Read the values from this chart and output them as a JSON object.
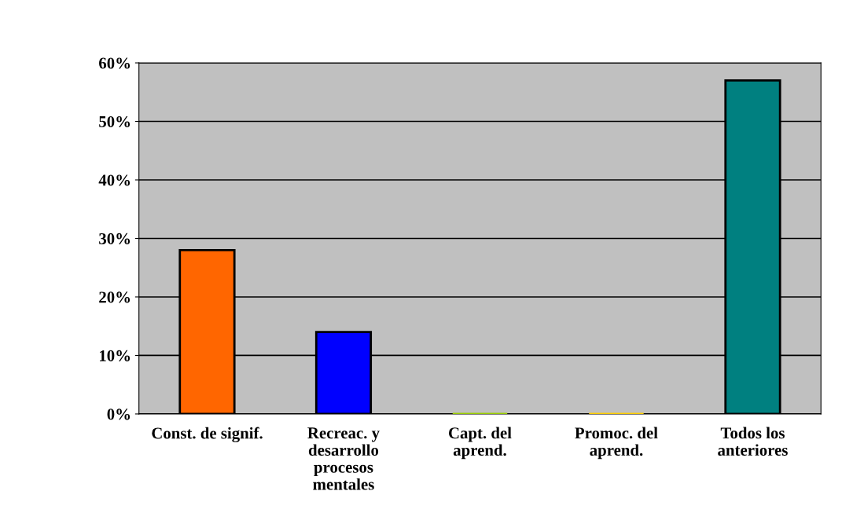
{
  "chart_data": {
    "type": "bar",
    "categories": [
      "Const. de signif.",
      "Recreac. y\ndesarrollo\nprocesos\nmentales",
      "Capt. del\naprend.",
      "Promoc. del\naprend.",
      "Todos los\nanteriores"
    ],
    "values": [
      28,
      14,
      0,
      0,
      57
    ],
    "colors": [
      "#ff6600",
      "#0000ff",
      "#99cc00",
      "#ffcc00",
      "#008080"
    ],
    "ylim": [
      0,
      60
    ],
    "yticks": [
      {
        "value": 0,
        "label": "0%"
      },
      {
        "value": 10,
        "label": "10%"
      },
      {
        "value": 20,
        "label": "20%"
      },
      {
        "value": 30,
        "label": "30%"
      },
      {
        "value": 40,
        "label": "40%"
      },
      {
        "value": 50,
        "label": "50%"
      },
      {
        "value": 60,
        "label": "60%"
      }
    ],
    "grid": "y",
    "legend": false
  }
}
